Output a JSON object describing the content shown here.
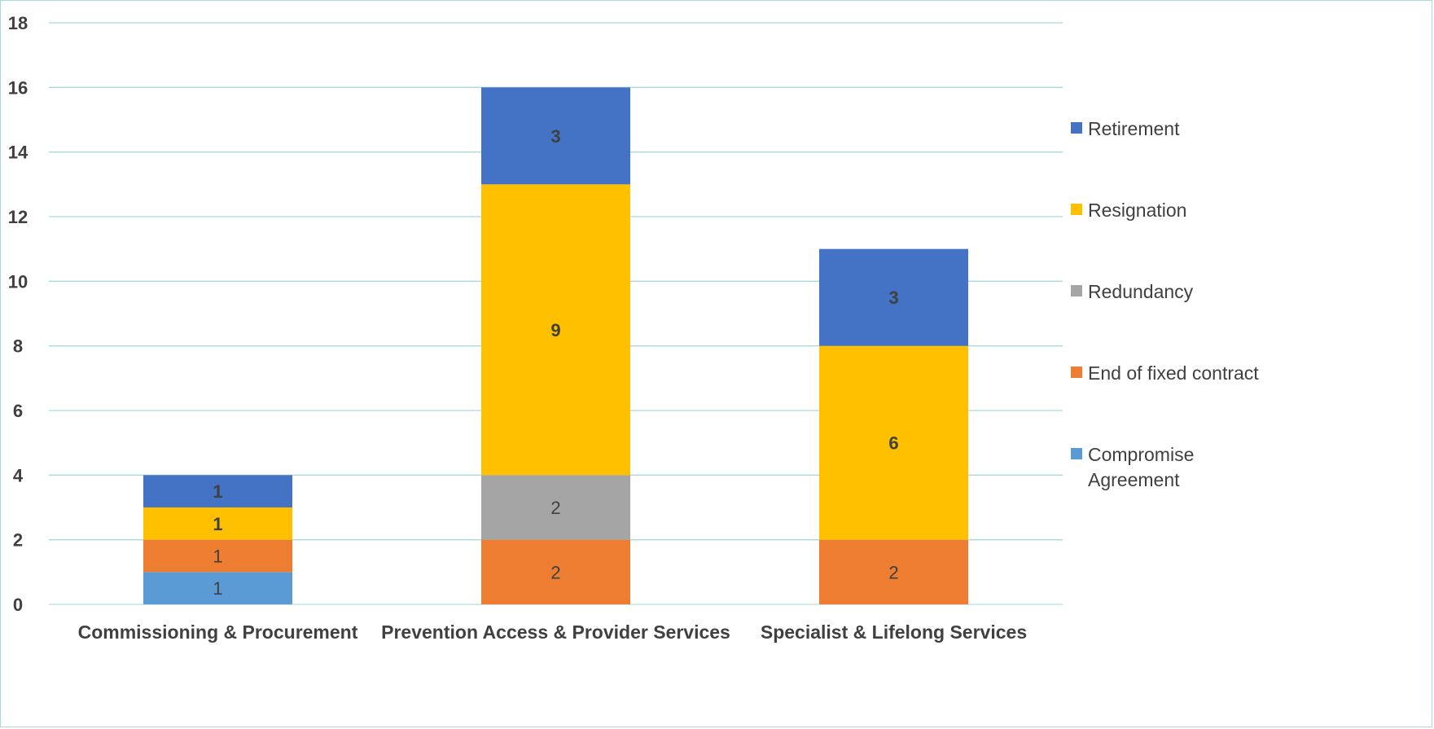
{
  "chart_data": {
    "type": "bar",
    "stacked": true,
    "title": "",
    "xlabel": "",
    "ylabel": "",
    "ylim": [
      0,
      18
    ],
    "yticks": [
      0,
      2,
      4,
      6,
      8,
      10,
      12,
      14,
      16,
      18
    ],
    "grid": true,
    "legend_position": "right",
    "categories": [
      "Commissioning & Procurement",
      "Prevention Access & Provider Services",
      "Specialist & Lifelong Services"
    ],
    "series": [
      {
        "name": "Compromise Agreement",
        "color": "#5b9bd5",
        "values": [
          1,
          0,
          0
        ],
        "label_bold": false
      },
      {
        "name": "End of fixed contract",
        "color": "#ed7d31",
        "values": [
          1,
          2,
          2
        ],
        "label_bold": false
      },
      {
        "name": "Redundancy",
        "color": "#a5a5a5",
        "values": [
          0,
          2,
          0
        ],
        "label_bold": false
      },
      {
        "name": "Resignation",
        "color": "#ffc000",
        "values": [
          1,
          9,
          6
        ],
        "label_bold": true
      },
      {
        "name": "Retirement",
        "color": "#4472c4",
        "values": [
          1,
          3,
          3
        ],
        "label_bold": true
      }
    ],
    "legend_order": [
      "Retirement",
      "Resignation",
      "Redundancy",
      "End of fixed contract",
      "Compromise Agreement"
    ],
    "legend_lines": {
      "Compromise Agreement": [
        "Compromise",
        "Agreement"
      ]
    }
  }
}
